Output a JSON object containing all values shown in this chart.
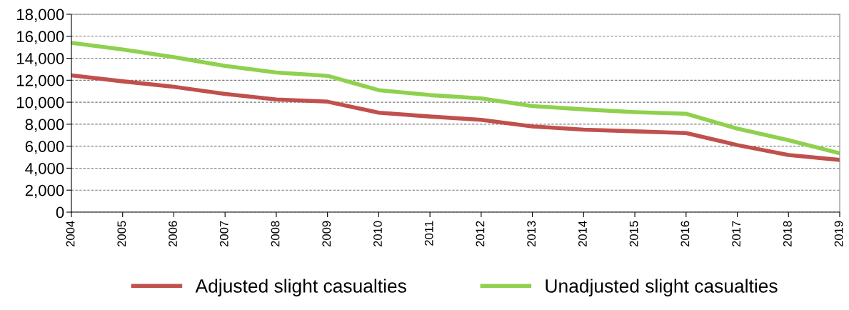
{
  "chart_data": {
    "type": "line",
    "x": [
      2004,
      2005,
      2006,
      2007,
      2008,
      2009,
      2010,
      2011,
      2012,
      2013,
      2014,
      2015,
      2016,
      2017,
      2018,
      2019
    ],
    "series": [
      {
        "name": "Adjusted slight casualties",
        "color": "#c0504d",
        "values": [
          12450,
          11900,
          11400,
          10750,
          10250,
          10050,
          9050,
          8700,
          8400,
          7800,
          7500,
          7350,
          7200,
          6100,
          5200,
          4750
        ]
      },
      {
        "name": "Unadjusted slight casualties",
        "color": "#8fd14f",
        "values": [
          15400,
          14800,
          14100,
          13300,
          12700,
          12400,
          11100,
          10650,
          10350,
          9650,
          9350,
          9100,
          8950,
          7600,
          6550,
          5350
        ]
      }
    ],
    "xlim": [
      2004,
      2019
    ],
    "xticks": [
      2004,
      2005,
      2006,
      2007,
      2008,
      2009,
      2010,
      2011,
      2012,
      2013,
      2014,
      2015,
      2016,
      2017,
      2018,
      2019
    ],
    "ylim": [
      0,
      18000
    ],
    "yticks": [
      {
        "value": 0,
        "label": "0"
      },
      {
        "value": 2000,
        "label": "2,000"
      },
      {
        "value": 4000,
        "label": "4,000"
      },
      {
        "value": 6000,
        "label": "6,000"
      },
      {
        "value": 8000,
        "label": "8,000"
      },
      {
        "value": 10000,
        "label": "10,000"
      },
      {
        "value": 12000,
        "label": "12,000"
      },
      {
        "value": 14000,
        "label": "14,000"
      },
      {
        "value": 16000,
        "label": "16,000"
      },
      {
        "value": 18000,
        "label": "18,000"
      }
    ],
    "grid": "y",
    "legend": "bottom",
    "marker": "none",
    "line_style": "solid"
  }
}
